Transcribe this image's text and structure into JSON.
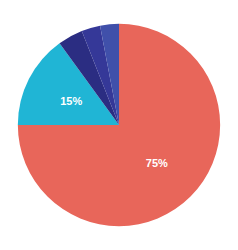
{
  "chart_data": {
    "type": "pie",
    "values": [
      75,
      15,
      4,
      3,
      3
    ],
    "colors": [
      "#E8665A",
      "#20B5D5",
      "#2B2D82",
      "#353898",
      "#4050AA"
    ],
    "data_labels": true,
    "value_labels": [
      "75%",
      "15%",
      null,
      null,
      null
    ]
  }
}
